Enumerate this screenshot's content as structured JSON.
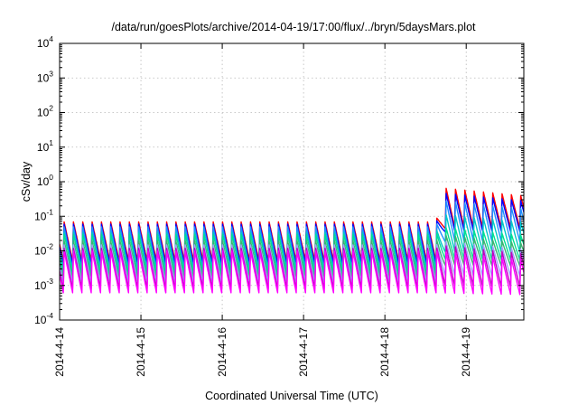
{
  "chart_data": {
    "type": "line",
    "title": "/data/run/goesPlots/archive/2014-04-19/17:00/flux/../bryn/5daysMars.plot",
    "xlabel": "Coordinated Universal Time (UTC)",
    "ylabel": "cSv/day",
    "yscale": "log",
    "ylim": [
      0.0001,
      10000
    ],
    "xlim": [
      "2014-04-14T00:00",
      "2014-04-19T17:00"
    ],
    "x_ticks": [
      "2014-4-14",
      "2014-4-15",
      "2014-4-16",
      "2014-4-17",
      "2014-4-18",
      "2014-4-19"
    ],
    "y_ticks": [
      {
        "value": 0.0001,
        "base": "10",
        "exp": "-4"
      },
      {
        "value": 0.001,
        "base": "10",
        "exp": "-3"
      },
      {
        "value": 0.01,
        "base": "10",
        "exp": "-2"
      },
      {
        "value": 0.1,
        "base": "10",
        "exp": "-1"
      },
      {
        "value": 1,
        "base": "10",
        "exp": "0"
      },
      {
        "value": 10,
        "base": "10",
        "exp": "1"
      },
      {
        "value": 100,
        "base": "10",
        "exp": "2"
      },
      {
        "value": 1000,
        "base": "10",
        "exp": "3"
      },
      {
        "value": 10000,
        "base": "10",
        "exp": "4"
      }
    ],
    "grid": true,
    "legend": "none",
    "period_hours": 2.75,
    "event_start": "2014-04-18T15:00",
    "series": [
      {
        "color": "#ff0000",
        "base_range": [
          0.005,
          0.07
        ],
        "event_range": [
          0.05,
          0.7
        ]
      },
      {
        "color": "#0000ff",
        "base_range": [
          0.004,
          0.06
        ],
        "event_range": [
          0.04,
          0.5
        ]
      },
      {
        "color": "#1e90ff",
        "base_range": [
          0.003,
          0.05
        ],
        "event_range": [
          0.02,
          0.3
        ]
      },
      {
        "color": "#00c8c8",
        "base_range": [
          0.002,
          0.035
        ],
        "event_range": [
          0.01,
          0.12
        ]
      },
      {
        "color": "#00e090",
        "base_range": [
          0.0025,
          0.03
        ],
        "event_range": [
          0.006,
          0.05
        ]
      },
      {
        "color": "#3cb371",
        "base_range": [
          0.0015,
          0.02
        ],
        "event_range": [
          0.004,
          0.03
        ]
      },
      {
        "color": "#a0a0ff",
        "base_range": [
          0.0012,
          0.015
        ],
        "event_range": [
          0.002,
          0.02
        ]
      },
      {
        "color": "#c000c0",
        "base_range": [
          0.0008,
          0.012
        ],
        "event_range": [
          0.001,
          0.015
        ]
      },
      {
        "color": "#ff00ff",
        "base_range": [
          0.0006,
          0.01
        ],
        "event_range": [
          0.0006,
          0.01
        ]
      }
    ]
  }
}
